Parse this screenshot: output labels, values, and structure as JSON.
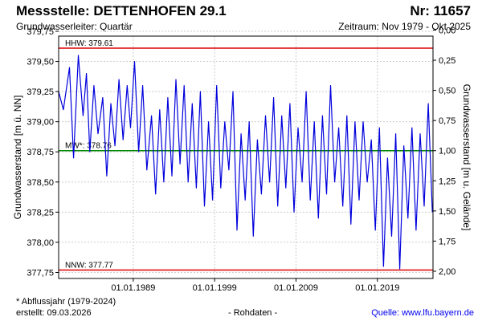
{
  "header": {
    "station_label": "Messstelle: DETTENHOFEN 29.1",
    "number_label": "Nr: 11657",
    "aquifer_label": "Grundwasserleiter: Quartär",
    "period_label": "Zeitraum: Nov 1979 - Okt 2025"
  },
  "footer": {
    "footnote": "* Abflussjahr (1979-2024)",
    "created": "erstellt:  09.03.2026",
    "raw_data": "- Rohdaten -",
    "source_label": "Quelle: www.lfu.bayern.de"
  },
  "chart_data": {
    "type": "line",
    "title": "",
    "xlabel": "",
    "ylabel": "Grundwasserstand [m ü. NN]",
    "y2label": "Grundwasserstand [m u. Gelände]",
    "xlim": [
      "1979-11-01",
      "2025-10-31"
    ],
    "ylim": [
      377.7,
      379.71
    ],
    "y2lim": [
      2.06,
      0.05
    ],
    "yticks": [
      377.75,
      378.0,
      378.25,
      378.5,
      378.75,
      379.0,
      379.25,
      379.5,
      379.75
    ],
    "ytick_labels": [
      "377,75",
      "378,00",
      "378,25",
      "378,50",
      "378,75",
      "379,00",
      "379,25",
      "379,50",
      "379,75"
    ],
    "y2ticks": [
      0.0,
      0.25,
      0.5,
      0.75,
      1.0,
      1.25,
      1.5,
      1.75,
      2.0
    ],
    "y2tick_labels": [
      "0,00",
      "0,25",
      "0,50",
      "0,75",
      "1,00",
      "1,25",
      "1,50",
      "1,75",
      "2,00"
    ],
    "xticks": [
      "1989-01-01",
      "1999-01-01",
      "2009-01-01",
      "2019-01-01"
    ],
    "xtick_labels": [
      "01.01.1989",
      "01.01.1999",
      "01.01.2009",
      "01.01.2019"
    ],
    "grid": true,
    "reference_lines": [
      {
        "label": "HHW: 379.61",
        "value": 379.61,
        "color": "#dd0000"
      },
      {
        "label": "MW*: 378.76",
        "value": 378.76,
        "color": "#008800"
      },
      {
        "label": "NNW: 377.77",
        "value": 377.77,
        "color": "#dd0000"
      }
    ],
    "series": [
      {
        "color": "#0000dd",
        "x": [
          "1979-11-01",
          "1980-06-01",
          "1981-03-01",
          "1981-09-01",
          "1982-04-01",
          "1982-11-01",
          "1983-04-01",
          "1983-09-01",
          "1984-03-01",
          "1984-09-01",
          "1985-04-01",
          "1985-10-01",
          "1986-04-01",
          "1986-10-01",
          "1987-04-01",
          "1987-10-01",
          "1988-04-01",
          "1988-09-01",
          "1989-03-01",
          "1989-09-01",
          "1990-03-01",
          "1990-09-01",
          "1991-04-01",
          "1991-10-01",
          "1992-04-01",
          "1992-10-01",
          "1993-04-01",
          "1993-10-01",
          "1994-04-01",
          "1994-10-01",
          "1995-04-01",
          "1995-10-01",
          "1996-04-01",
          "1996-10-01",
          "1997-04-01",
          "1997-10-01",
          "1998-04-01",
          "1998-10-01",
          "1999-04-01",
          "1999-10-01",
          "2000-04-01",
          "2000-10-01",
          "2001-04-01",
          "2001-10-01",
          "2002-04-01",
          "2002-10-01",
          "2003-04-01",
          "2003-10-01",
          "2004-04-01",
          "2004-10-01",
          "2005-04-01",
          "2005-10-01",
          "2006-04-01",
          "2006-10-01",
          "2007-04-01",
          "2007-10-01",
          "2008-04-01",
          "2008-10-01",
          "2009-04-01",
          "2009-10-01",
          "2010-04-01",
          "2010-10-01",
          "2011-04-01",
          "2011-10-01",
          "2012-04-01",
          "2012-10-01",
          "2013-04-01",
          "2013-10-01",
          "2014-04-01",
          "2014-10-01",
          "2015-04-01",
          "2015-10-01",
          "2016-04-01",
          "2016-10-01",
          "2017-04-01",
          "2017-10-01",
          "2018-04-01",
          "2018-10-01",
          "2019-04-01",
          "2019-10-01",
          "2020-04-01",
          "2020-10-01",
          "2021-04-01",
          "2021-10-01",
          "2022-04-01",
          "2022-10-01",
          "2023-04-01",
          "2023-10-01",
          "2024-04-01",
          "2024-10-01",
          "2025-04-01",
          "2025-10-01"
        ],
        "y": [
          379.25,
          379.1,
          379.45,
          378.7,
          379.55,
          379.05,
          379.4,
          378.75,
          379.3,
          378.9,
          379.2,
          378.55,
          379.15,
          378.8,
          379.35,
          378.85,
          379.3,
          378.95,
          379.5,
          378.75,
          379.3,
          378.6,
          379.05,
          378.4,
          379.1,
          378.5,
          379.2,
          378.55,
          379.35,
          378.65,
          379.3,
          378.5,
          379.15,
          378.45,
          379.25,
          378.3,
          379.0,
          378.35,
          379.3,
          378.45,
          379.0,
          378.6,
          379.25,
          378.1,
          378.9,
          378.35,
          379.0,
          378.05,
          378.85,
          378.4,
          379.05,
          378.5,
          379.2,
          378.3,
          379.05,
          378.45,
          379.15,
          378.25,
          378.95,
          378.5,
          379.25,
          378.35,
          379.0,
          378.2,
          379.05,
          378.4,
          379.3,
          378.5,
          378.95,
          378.3,
          379.05,
          378.15,
          379.0,
          378.35,
          379.0,
          378.5,
          378.85,
          378.1,
          378.95,
          377.8,
          378.7,
          378.05,
          378.9,
          377.78,
          378.8,
          378.2,
          378.95,
          378.1,
          378.9,
          378.3,
          379.15,
          378.25
        ]
      }
    ]
  }
}
